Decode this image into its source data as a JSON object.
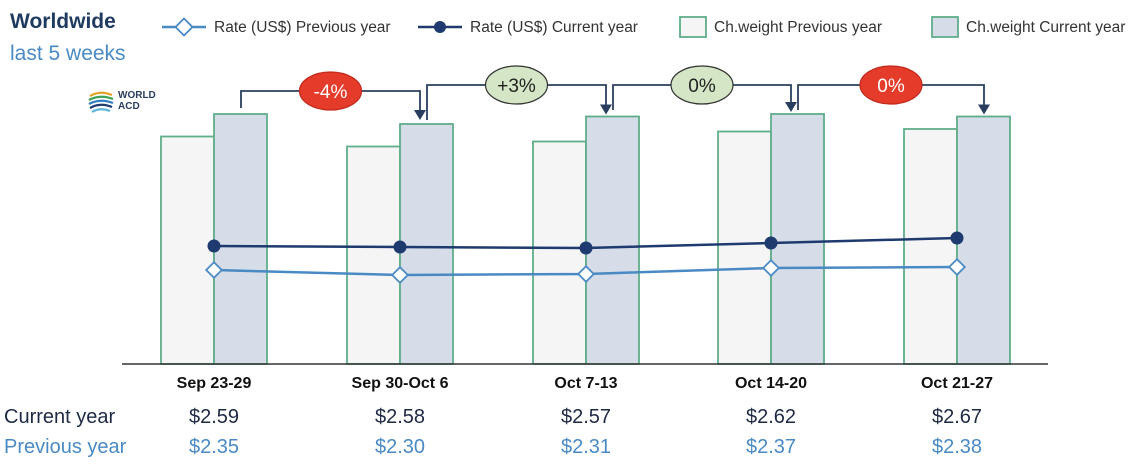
{
  "header": {
    "title": "Worldwide",
    "subtitle": "last 5 weeks"
  },
  "logo": {
    "line1": "WORLD",
    "line2": "ACD"
  },
  "colors": {
    "rate_prev": "#4a8ac4",
    "rate_cur": "#1e3a6e",
    "bar_outline": "#5fae8a",
    "bar_prev_fill": "#f5f5f5",
    "bar_cur_fill": "#d6dde8",
    "badge_down": "#e53b2a",
    "badge_flat": "#d4e6c6"
  },
  "chart_data": {
    "type": "bar",
    "categories": [
      "Sep 23-29",
      "Sep 30-Oct 6",
      "Oct 7-13",
      "Oct 14-20",
      "Oct 21-27"
    ],
    "series": [
      {
        "name": "Rate (US$) Previous year",
        "kind": "line",
        "values": [
          2.35,
          2.3,
          2.31,
          2.37,
          2.38
        ]
      },
      {
        "name": "Rate (US$) Current year",
        "kind": "line",
        "values": [
          2.59,
          2.58,
          2.57,
          2.62,
          2.67
        ]
      },
      {
        "name": "Ch.weight Previous year",
        "kind": "bar",
        "values": [
          91,
          87,
          89,
          93,
          94
        ]
      },
      {
        "name": "Ch.weight Current year",
        "kind": "bar",
        "values": [
          100,
          96,
          99,
          100,
          99
        ]
      }
    ],
    "week_changes": [
      "-4%",
      "+3%",
      "0%",
      "0%"
    ],
    "week_change_colors": [
      "down",
      "flat",
      "flat",
      "down"
    ],
    "legend_position": "top",
    "grid": false
  },
  "table": {
    "current_label": "Current year",
    "previous_label": "Previous year",
    "current_values": [
      "$2.59",
      "$2.58",
      "$2.57",
      "$2.62",
      "$2.67"
    ],
    "previous_values": [
      "$2.35",
      "$2.30",
      "$2.31",
      "$2.37",
      "$2.38"
    ]
  }
}
